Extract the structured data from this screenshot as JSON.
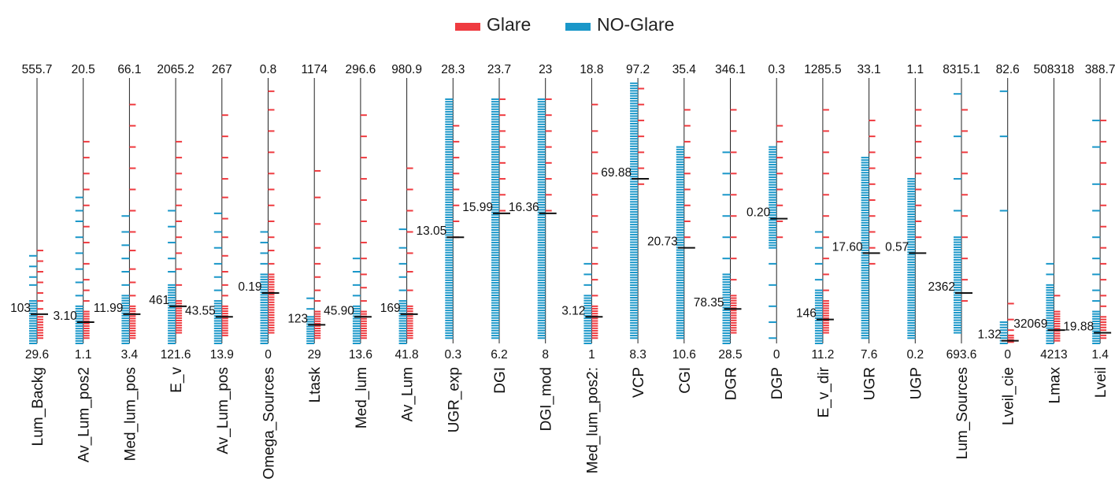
{
  "chart_data": {
    "type": "parallel-strip",
    "legend": [
      {
        "name": "Glare",
        "color": "#ef3b40"
      },
      {
        "name": "NO-Glare",
        "color": "#1a97c9"
      }
    ],
    "legend_placement": "top-center",
    "axes": [
      {
        "name": "Lum_Backg",
        "max": "555.7",
        "min": "29.6",
        "threshold": "103",
        "glare": [
          [
            0.02,
            0.1
          ],
          0.13,
          0.16,
          0.19,
          0.23,
          0.27,
          0.31,
          0.35
        ],
        "noglare": [
          [
            0,
            0.16
          ],
          0.22,
          0.25,
          0.29,
          0.33
        ]
      },
      {
        "name": "Av_Lum_pos2",
        "max": "20.5",
        "min": "1.1",
        "threshold": "3.10",
        "glare": [
          [
            0.02,
            0.12
          ],
          0.16,
          0.2,
          0.24,
          0.3,
          0.38,
          0.44,
          0.52,
          0.58,
          0.64,
          0.7,
          0.76
        ],
        "noglare": [
          [
            0,
            0.14
          ],
          0.18,
          0.23,
          0.28,
          0.34,
          0.4,
          0.46,
          0.5,
          0.55
        ]
      },
      {
        "name": "Med_lum_pos",
        "max": "66.1",
        "min": "3.4",
        "threshold": "11.99",
        "glare": [
          [
            0.02,
            0.14
          ],
          0.18,
          0.23,
          0.28,
          0.35,
          0.42,
          0.5,
          0.58,
          0.66,
          0.74,
          0.82,
          0.9
        ],
        "noglare": [
          [
            0,
            0.18
          ],
          0.22,
          0.27,
          0.32,
          0.37,
          0.42,
          0.48
        ]
      },
      {
        "name": "E_v",
        "max": "2065.2",
        "min": "121.6",
        "threshold": "461",
        "glare": [
          [
            0.04,
            0.16
          ],
          0.22,
          0.28,
          0.34,
          0.4,
          0.46,
          0.52,
          0.58,
          0.64,
          0.7,
          0.76
        ],
        "noglare": [
          [
            0,
            0.22
          ],
          0.27,
          0.32,
          0.38,
          0.44,
          0.5
        ]
      },
      {
        "name": "Av_Lum_pos",
        "max": "267",
        "min": "13.9",
        "threshold": "43.55",
        "glare": [
          [
            0.03,
            0.14
          ],
          0.18,
          0.22,
          0.27,
          0.33,
          0.4,
          0.47,
          0.55,
          0.62,
          0.7,
          0.78,
          0.86
        ],
        "noglare": [
          [
            0,
            0.16
          ],
          0.2,
          0.25,
          0.3,
          0.36,
          0.42,
          0.49
        ]
      },
      {
        "name": "Omega_Sources",
        "max": "0.8",
        "min": "0",
        "threshold": "0.19",
        "glare": [
          [
            0.04,
            0.26
          ],
          0.3,
          0.35,
          0.4,
          0.46,
          0.52,
          0.58,
          0.64,
          0.72,
          0.8,
          0.88,
          0.95
        ],
        "noglare": [
          [
            0,
            0.26
          ],
          0.3,
          0.34,
          0.38,
          0.42
        ]
      },
      {
        "name": "Ltask",
        "max": "1174",
        "min": "29",
        "threshold": "123",
        "glare": [
          [
            0.02,
            0.12
          ],
          0.16,
          0.2,
          0.25,
          0.3,
          0.36,
          0.45,
          0.55,
          0.65
        ],
        "noglare": [
          [
            0,
            0.1
          ],
          0.13,
          0.17
        ]
      },
      {
        "name": "Med_lum",
        "max": "296.6",
        "min": "13.6",
        "threshold": "45.90",
        "glare": [
          [
            0.02,
            0.12
          ],
          0.16,
          0.21,
          0.26,
          0.32,
          0.38,
          0.46,
          0.54,
          0.62,
          0.7,
          0.78,
          0.86
        ],
        "noglare": [
          [
            0,
            0.14
          ],
          0.18,
          0.22,
          0.27,
          0.32
        ]
      },
      {
        "name": "Av_Lum",
        "max": "980.9",
        "min": "41.8",
        "threshold": "169",
        "glare": [
          [
            0.02,
            0.14
          ],
          0.2,
          0.27,
          0.34,
          0.42,
          0.5,
          0.58,
          0.66
        ],
        "noglare": [
          [
            0,
            0.16
          ],
          0.2,
          0.25,
          0.3,
          0.36,
          0.43
        ]
      },
      {
        "name": "UGR_exp",
        "max": "28.3",
        "min": "0.3",
        "threshold": "13.05",
        "glare": [
          0.4,
          0.46,
          0.52,
          0.58,
          0.64,
          0.7,
          0.76,
          0.82
        ],
        "noglare": [
          [
            0.02,
            0.92
          ]
        ]
      },
      {
        "name": "DGI",
        "max": "23.7",
        "min": "6.2",
        "threshold": "15.99",
        "glare": [
          0.5,
          0.56,
          0.62,
          0.68,
          0.74,
          0.8,
          0.86,
          0.92
        ],
        "noglare": [
          [
            0.02,
            0.92
          ]
        ]
      },
      {
        "name": "DGI_mod",
        "max": "23",
        "min": "8",
        "threshold": "16.36",
        "glare": [
          0.5,
          0.56,
          0.62,
          0.68,
          0.74,
          0.8,
          0.86,
          0.92
        ],
        "noglare": [
          [
            0.02,
            0.92
          ]
        ]
      },
      {
        "name": "Med_lum_pos2:",
        "max": "18.8",
        "min": "1",
        "threshold": "3.12",
        "glare": [
          [
            0.02,
            0.14
          ],
          0.18,
          0.24,
          0.3,
          0.36,
          0.42,
          0.48,
          0.56,
          0.64,
          0.72,
          0.8,
          0.9
        ],
        "noglare": [
          [
            0,
            0.18
          ],
          0.22,
          0.26,
          0.3
        ]
      },
      {
        "name": "VCP",
        "max": "97.2",
        "min": "8.3",
        "threshold": "69.88",
        "glare": [
          0.6,
          0.66,
          0.72,
          0.78,
          0.84,
          0.9,
          0.96
        ],
        "noglare": [
          [
            0.02,
            0.98
          ]
        ]
      },
      {
        "name": "CGI",
        "max": "35.4",
        "min": "10.6",
        "threshold": "20.73",
        "glare": [
          0.4,
          0.46,
          0.52,
          0.58,
          0.64,
          0.7,
          0.76,
          0.82,
          0.88
        ],
        "noglare": [
          [
            0.02,
            0.74
          ]
        ]
      },
      {
        "name": "DGR",
        "max": "346.1",
        "min": "28.5",
        "threshold": "78.35",
        "glare": [
          [
            0.04,
            0.18
          ],
          0.24,
          0.32,
          0.4,
          0.48,
          0.56,
          0.64,
          0.72,
          0.8,
          0.88
        ],
        "noglare": [
          [
            0,
            0.26
          ],
          0.32,
          0.4,
          0.48,
          0.56,
          0.64,
          0.72
        ]
      },
      {
        "name": "DGP",
        "max": "0.3",
        "min": "0",
        "threshold": "0.20",
        "glare": [
          0.4,
          0.46,
          0.52,
          0.58,
          0.64,
          0.7,
          0.76,
          0.82
        ],
        "noglare": [
          [
            0.36,
            0.74
          ],
          0.02,
          0.08,
          0.14,
          0.22,
          0.3
        ]
      },
      {
        "name": "E_v_dir",
        "max": "1285.5",
        "min": "11.2",
        "threshold": "146",
        "glare": [
          [
            0.04,
            0.16
          ],
          0.2,
          0.26,
          0.32,
          0.4,
          0.48,
          0.56,
          0.64,
          0.72,
          0.8,
          0.88
        ],
        "noglare": [
          [
            0,
            0.2
          ],
          0.24,
          0.3,
          0.36,
          0.42
        ]
      },
      {
        "name": "UGR",
        "max": "33.1",
        "min": "7.6",
        "threshold": "17.60",
        "glare": [
          0.3,
          0.36,
          0.42,
          0.48,
          0.54,
          0.6,
          0.66,
          0.72,
          0.78,
          0.84
        ],
        "noglare": [
          [
            0.02,
            0.7
          ]
        ]
      },
      {
        "name": "UGP",
        "max": "1.1",
        "min": "0.2",
        "threshold": "0.57",
        "glare": [
          0.4,
          0.46,
          0.52,
          0.58,
          0.64,
          0.7,
          0.76,
          0.82,
          0.88
        ],
        "noglare": [
          [
            0.02,
            0.62
          ]
        ]
      },
      {
        "name": "Lum_Sources",
        "max": "8315.1",
        "min": "693.6",
        "threshold": "2362",
        "glare": [
          0.16,
          0.24,
          0.32,
          0.4,
          0.48,
          0.56,
          0.64,
          0.72,
          0.8,
          0.88
        ],
        "noglare": [
          [
            0.04,
            0.4
          ],
          0.5,
          0.62,
          0.78,
          0.94
        ]
      },
      {
        "name": "Lveil_cie",
        "max": "82.6",
        "min": "0",
        "threshold": "1.32",
        "glare": [
          [
            0.005,
            0.03
          ],
          0.05,
          0.09,
          0.15
        ],
        "noglare": [
          [
            0,
            0.08
          ],
          0.5,
          0.78,
          0.95
        ]
      },
      {
        "name": "Lmax",
        "max": "508318",
        "min": "4213",
        "threshold": "32069",
        "glare": [
          [
            0.01,
            0.12
          ],
          0.18
        ],
        "noglare": [
          [
            0,
            0.22
          ],
          0.26,
          0.3
        ]
      },
      {
        "name": "Lveil",
        "max": "388.7",
        "min": "1.4",
        "threshold": "19.88",
        "glare": [
          [
            0.02,
            0.1
          ],
          0.14,
          0.18,
          0.24,
          0.3,
          0.36,
          0.44,
          0.52,
          0.6,
          0.68,
          0.76,
          0.84
        ],
        "noglare": [
          [
            0,
            0.12
          ],
          0.16,
          0.2,
          0.26,
          0.32,
          0.4,
          0.5,
          0.6,
          0.74,
          0.84
        ]
      }
    ],
    "threshold_positions": [
      0.11,
      0.08,
      0.11,
      0.14,
      0.1,
      0.19,
      0.07,
      0.1,
      0.11,
      0.4,
      0.49,
      0.49,
      0.1,
      0.62,
      0.36,
      0.13,
      0.47,
      0.09,
      0.34,
      0.34,
      0.19,
      0.01,
      0.05,
      0.04
    ]
  }
}
